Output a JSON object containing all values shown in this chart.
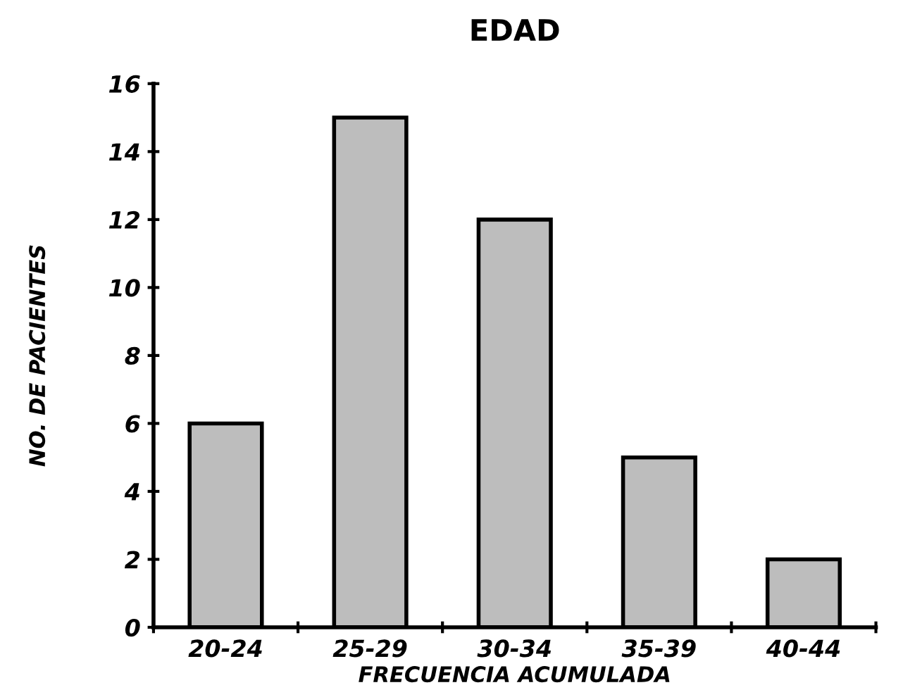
{
  "chart_data": {
    "type": "bar",
    "title": "EDAD",
    "xlabel": "FRECUENCIA ACUMULADA",
    "ylabel": "NO. DE PACIENTES",
    "categories": [
      "20-24",
      "25-29",
      "30-34",
      "35-39",
      "40-44"
    ],
    "values": [
      6,
      15,
      12,
      5,
      2
    ],
    "color": "#bdbdbd",
    "ylim": [
      0,
      16
    ],
    "yticks": [
      0,
      2,
      4,
      6,
      8,
      10,
      12,
      14,
      16
    ],
    "grid": false
  }
}
